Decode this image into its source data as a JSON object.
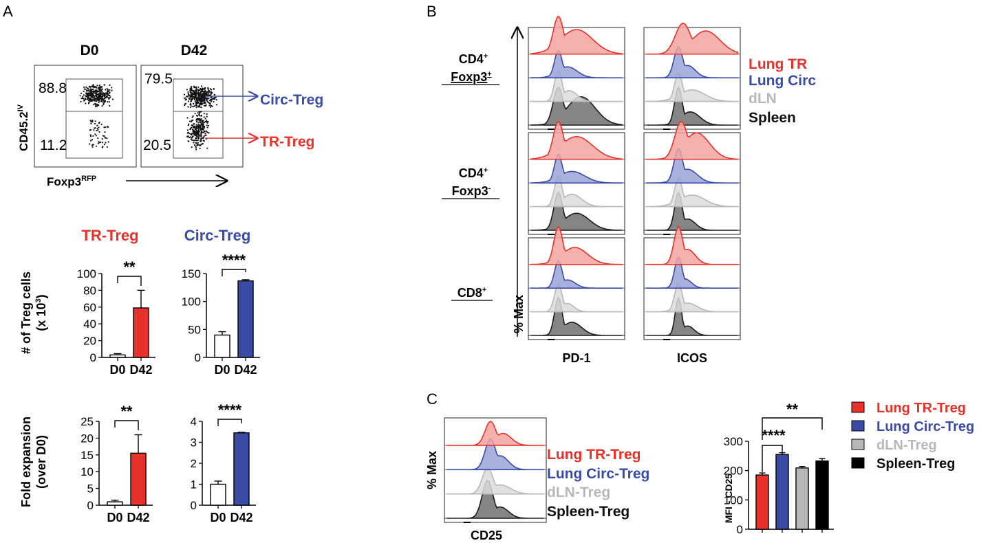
{
  "panels": {
    "a": "A",
    "b": "B",
    "c": "C"
  },
  "colors": {
    "tr": "#e8312a",
    "circ": "#3a4ba6",
    "dln": "#b8b8b8",
    "spleen": "#1a1a1a",
    "tr_fill": "#f2a3a0",
    "circ_fill": "#9aa4d6",
    "dln_fill": "#dcdcdc",
    "spleen_fill": "#707070"
  },
  "panel_a": {
    "flow": {
      "d0_title": "D0",
      "d42_title": "D42",
      "y_axis": "CD45.2",
      "y_axis_sup": "IV",
      "x_axis": "Foxp3",
      "x_axis_sup": "RFP",
      "d0_top": "88.8",
      "d0_bottom": "11.2",
      "d42_top": "79.5",
      "d42_bottom": "20.5",
      "circ_label": "Circ-Treg",
      "tr_label": "TR-Treg"
    },
    "tr_title": "TR-Treg",
    "circ_title": "Circ-Treg",
    "counts_ylabel_1": "# of Treg cells",
    "counts_ylabel_2": "(x 10",
    "counts_ylabel_sup": "3",
    "counts_ylabel_end": ")",
    "fold_ylabel_1": "Fold expansion",
    "fold_ylabel_2": "(over D0)"
  },
  "panel_b": {
    "row1": "CD4",
    "row1_sub": "Foxp3",
    "row1_sup1": "+",
    "row1_sup2": "+",
    "row2": "CD4",
    "row2_sub": "Foxp3",
    "row2_sup1": "+",
    "row2_sup2": "-",
    "row3": "CD8",
    "row3_sup": "+",
    "y_axis": "% Max",
    "col1": "PD-1",
    "col2": "ICOS",
    "legend": [
      "Lung TR",
      "Lung Circ",
      "dLN",
      "Spleen"
    ]
  },
  "panel_c": {
    "y_axis": "% Max",
    "x_axis": "CD25",
    "legend": [
      "Lung TR-Treg",
      "Lung Circ-Treg",
      "dLN-Treg",
      "Spleen-Treg"
    ],
    "bar_legend": [
      "Lung TR-Treg",
      "Lung Circ-Treg",
      "dLN-Treg",
      "Spleen-Treg"
    ]
  },
  "chart_data": [
    {
      "type": "bar",
      "name": "tr-counts",
      "categories": [
        "D0",
        "D42"
      ],
      "values": [
        3,
        59
      ],
      "errors": [
        1.5,
        21
      ],
      "ylim": [
        0,
        100
      ],
      "yticks": [
        "0",
        "20",
        "40",
        "60",
        "80",
        "100"
      ],
      "xlabel": "",
      "ylabel": "# of Treg cells (x 10^3)",
      "significance": "**",
      "fills": [
        "#ffffff",
        "#e8312a"
      ]
    },
    {
      "type": "bar",
      "name": "circ-counts",
      "categories": [
        "D0",
        "D42"
      ],
      "values": [
        40,
        137
      ],
      "errors": [
        6,
        2
      ],
      "ylim": [
        0,
        150
      ],
      "yticks": [
        "0",
        "50",
        "100",
        "150"
      ],
      "xlabel": "",
      "ylabel": "",
      "significance": "****",
      "fills": [
        "#ffffff",
        "#3a4ba6"
      ]
    },
    {
      "type": "bar",
      "name": "tr-fold",
      "categories": [
        "D0",
        "D42"
      ],
      "values": [
        1,
        15.5
      ],
      "errors": [
        0.5,
        5.5
      ],
      "ylim": [
        0,
        25
      ],
      "yticks": [
        "0",
        "5",
        "10",
        "15",
        "20",
        "25"
      ],
      "xlabel": "",
      "ylabel": "Fold expansion (over D0)",
      "significance": "**",
      "fills": [
        "#ffffff",
        "#e8312a"
      ]
    },
    {
      "type": "bar",
      "name": "circ-fold",
      "categories": [
        "D0",
        "D42"
      ],
      "values": [
        1,
        3.45
      ],
      "errors": [
        0.15,
        0.03
      ],
      "ylim": [
        0,
        4
      ],
      "yticks": [
        "0",
        "1",
        "2",
        "3",
        "4"
      ],
      "xlabel": "",
      "ylabel": "",
      "significance": "****",
      "fills": [
        "#ffffff",
        "#3a4ba6"
      ]
    },
    {
      "type": "bar",
      "name": "mfi-cd25",
      "categories": [
        "Lung TR-Treg",
        "Lung Circ-Treg",
        "dLN-Treg",
        "Spleen-Treg"
      ],
      "values": [
        185,
        255,
        209,
        233
      ],
      "errors": [
        7,
        6,
        5,
        8
      ],
      "ylim": [
        0,
        300
      ],
      "yticks": [
        "0",
        "100",
        "200",
        "300"
      ],
      "xlabel": "",
      "ylabel": "MFI - CD25",
      "significance_pairs": [
        {
          "label": "****",
          "from": 0,
          "to": 1
        },
        {
          "label": "**",
          "from": 0,
          "to": 3
        }
      ],
      "fills": [
        "#e8312a",
        "#3a4ba6",
        "#b8b8b8",
        "#000000"
      ]
    }
  ]
}
